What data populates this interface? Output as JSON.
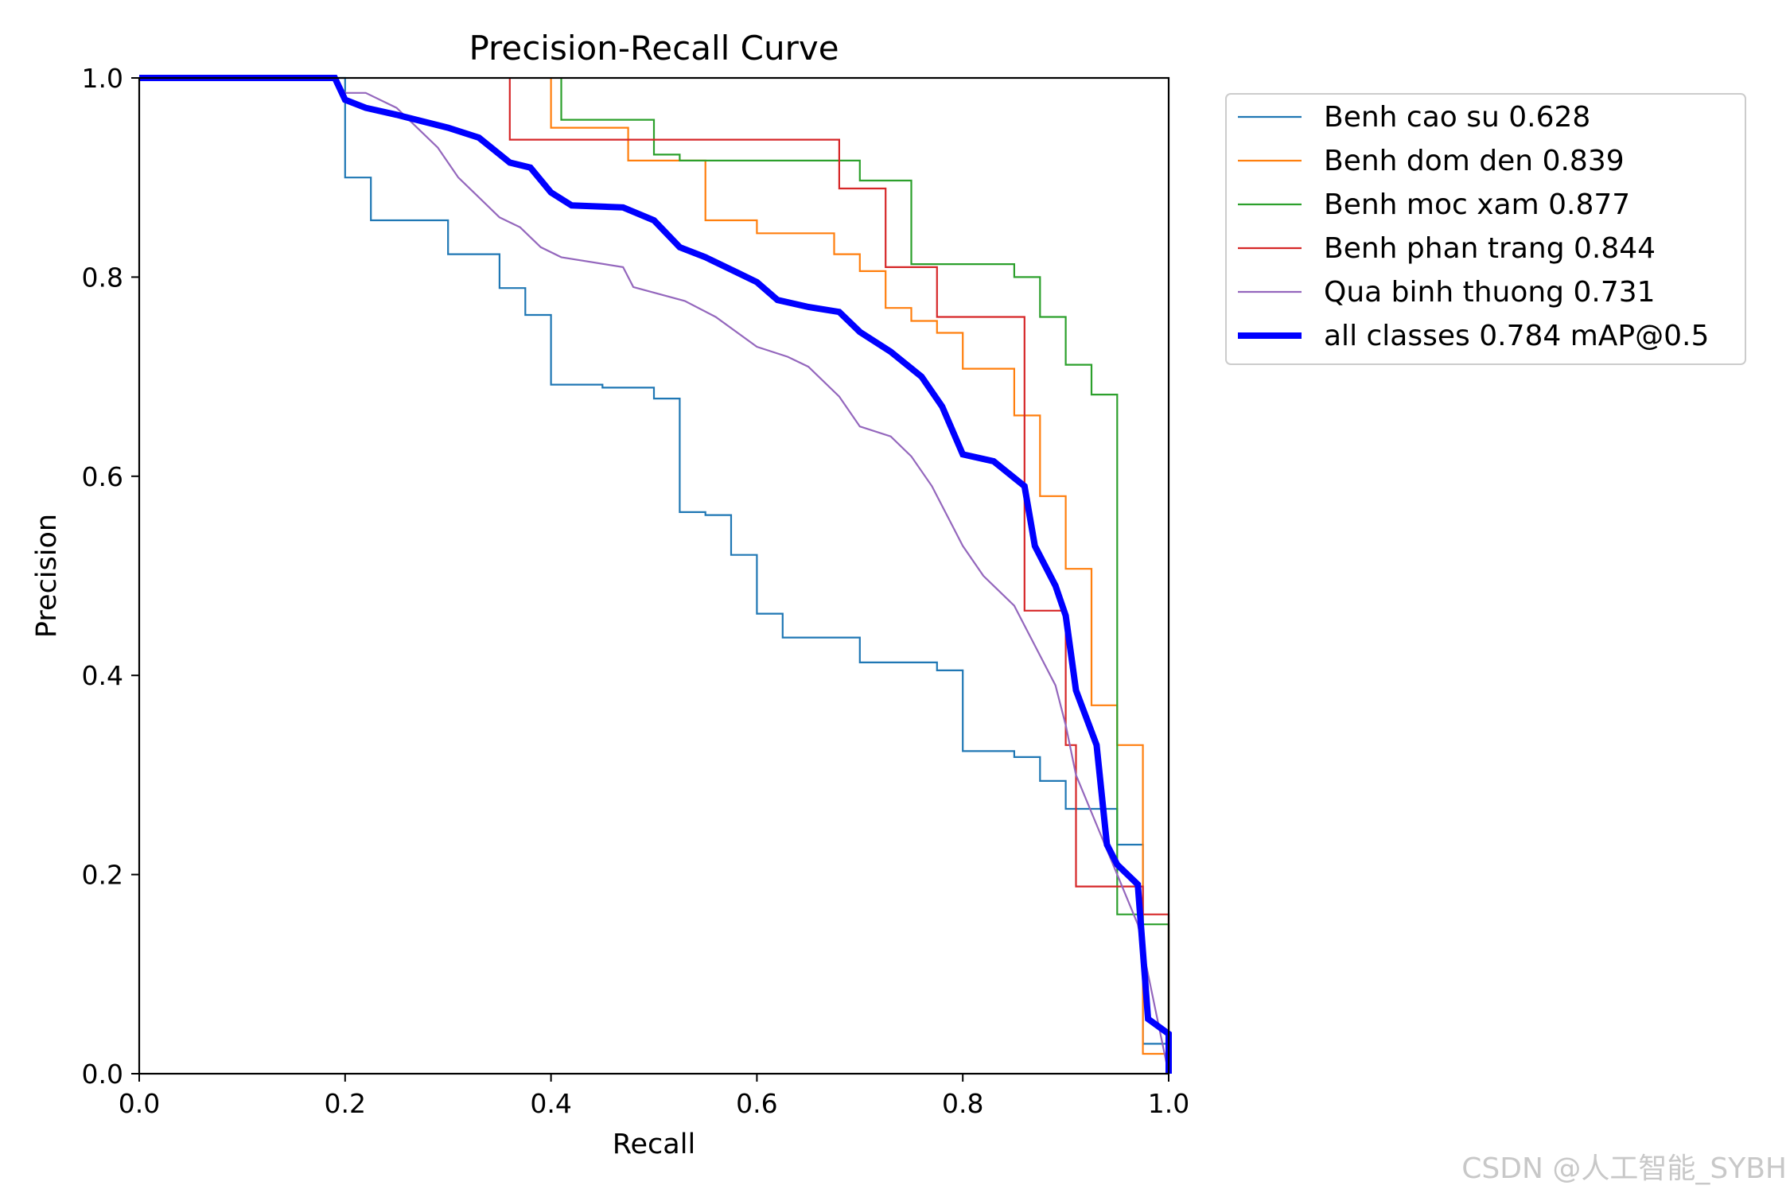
{
  "chart_data": {
    "type": "line",
    "title": "Precision-Recall Curve",
    "xlabel": "Recall",
    "ylabel": "Precision",
    "xlim": [
      0,
      1
    ],
    "ylim": [
      0,
      1
    ],
    "xticks": [
      "0.0",
      "0.2",
      "0.4",
      "0.6",
      "0.8",
      "1.0"
    ],
    "yticks": [
      "0.0",
      "0.2",
      "0.4",
      "0.6",
      "0.8",
      "1.0"
    ],
    "grid": false,
    "legend_position": "outside-top-right",
    "series": [
      {
        "name": "Benh cao su 0.628",
        "color": "#1f77b4",
        "width": "thin",
        "x": [
          0,
          0.19,
          0.2,
          0.2,
          0.225,
          0.225,
          0.3,
          0.3,
          0.35,
          0.35,
          0.375,
          0.375,
          0.4,
          0.4,
          0.45,
          0.45,
          0.5,
          0.5,
          0.525,
          0.525,
          0.55,
          0.55,
          0.575,
          0.575,
          0.6,
          0.6,
          0.625,
          0.625,
          0.7,
          0.7,
          0.775,
          0.775,
          0.8,
          0.8,
          0.85,
          0.85,
          0.875,
          0.875,
          0.9,
          0.9,
          0.95,
          0.95,
          0.975,
          0.975,
          1.0,
          1.0
        ],
        "y": [
          1.0,
          1.0,
          1.0,
          0.9,
          0.9,
          0.857,
          0.857,
          0.823,
          0.823,
          0.789,
          0.789,
          0.762,
          0.762,
          0.692,
          0.692,
          0.689,
          0.689,
          0.678,
          0.678,
          0.564,
          0.564,
          0.561,
          0.561,
          0.521,
          0.521,
          0.462,
          0.462,
          0.438,
          0.438,
          0.413,
          0.413,
          0.405,
          0.405,
          0.324,
          0.324,
          0.318,
          0.318,
          0.294,
          0.294,
          0.266,
          0.266,
          0.23,
          0.23,
          0.03,
          0.03,
          0.0
        ]
      },
      {
        "name": "Benh dom den 0.839",
        "color": "#ff7f0e",
        "width": "thin",
        "x": [
          0.4,
          0.4,
          0.475,
          0.475,
          0.55,
          0.55,
          0.6,
          0.6,
          0.675,
          0.675,
          0.7,
          0.7,
          0.725,
          0.725,
          0.75,
          0.75,
          0.775,
          0.775,
          0.8,
          0.8,
          0.85,
          0.85,
          0.875,
          0.875,
          0.9,
          0.9,
          0.925,
          0.925,
          0.95,
          0.95,
          0.975,
          0.975,
          1.0,
          1.0
        ],
        "y": [
          1.0,
          0.95,
          0.95,
          0.917,
          0.917,
          0.857,
          0.857,
          0.844,
          0.844,
          0.823,
          0.823,
          0.806,
          0.806,
          0.769,
          0.769,
          0.756,
          0.756,
          0.744,
          0.744,
          0.708,
          0.708,
          0.661,
          0.661,
          0.58,
          0.58,
          0.507,
          0.507,
          0.37,
          0.37,
          0.33,
          0.33,
          0.02,
          0.02,
          0.0
        ]
      },
      {
        "name": "Benh moc xam 0.877",
        "color": "#2ca02c",
        "width": "thin",
        "x": [
          0.41,
          0.41,
          0.5,
          0.5,
          0.525,
          0.525,
          0.7,
          0.7,
          0.75,
          0.75,
          0.85,
          0.85,
          0.875,
          0.875,
          0.9,
          0.9,
          0.925,
          0.925,
          0.95,
          0.95,
          0.975,
          0.975,
          1.0,
          1.0
        ],
        "y": [
          1.0,
          0.958,
          0.958,
          0.923,
          0.923,
          0.917,
          0.917,
          0.897,
          0.897,
          0.813,
          0.813,
          0.8,
          0.8,
          0.76,
          0.76,
          0.712,
          0.712,
          0.682,
          0.682,
          0.16,
          0.16,
          0.15,
          0.15,
          0.0
        ]
      },
      {
        "name": "Benh phan trang 0.844",
        "color": "#d62728",
        "width": "thin",
        "x": [
          0.36,
          0.36,
          0.68,
          0.68,
          0.725,
          0.725,
          0.775,
          0.775,
          0.86,
          0.86,
          0.9,
          0.9,
          0.91,
          0.91,
          0.975,
          0.975,
          1.0,
          1.0
        ],
        "y": [
          1.0,
          0.938,
          0.938,
          0.889,
          0.889,
          0.81,
          0.81,
          0.76,
          0.76,
          0.465,
          0.465,
          0.33,
          0.33,
          0.188,
          0.188,
          0.16,
          0.16,
          0.0
        ]
      },
      {
        "name": "Qua binh thuong 0.731",
        "color": "#9467bd",
        "width": "thin",
        "x": [
          0,
          0.19,
          0.2,
          0.22,
          0.25,
          0.26,
          0.29,
          0.31,
          0.33,
          0.35,
          0.37,
          0.39,
          0.41,
          0.47,
          0.48,
          0.53,
          0.56,
          0.6,
          0.63,
          0.65,
          0.68,
          0.7,
          0.73,
          0.75,
          0.77,
          0.79,
          0.8,
          0.82,
          0.85,
          0.87,
          0.89,
          0.9,
          0.91,
          0.93,
          0.95,
          0.97,
          0.98,
          1.0
        ],
        "y": [
          1.0,
          1.0,
          0.985,
          0.985,
          0.97,
          0.96,
          0.93,
          0.9,
          0.88,
          0.86,
          0.85,
          0.83,
          0.82,
          0.81,
          0.79,
          0.776,
          0.76,
          0.73,
          0.72,
          0.71,
          0.68,
          0.65,
          0.64,
          0.62,
          0.59,
          0.55,
          0.53,
          0.5,
          0.47,
          0.43,
          0.39,
          0.35,
          0.3,
          0.25,
          0.2,
          0.15,
          0.1,
          0.0
        ]
      },
      {
        "name": "all classes 0.784 mAP@0.5",
        "color": "#0000ff",
        "width": "thick",
        "x": [
          0,
          0.19,
          0.2,
          0.22,
          0.25,
          0.3,
          0.33,
          0.36,
          0.38,
          0.4,
          0.42,
          0.47,
          0.5,
          0.525,
          0.55,
          0.58,
          0.6,
          0.62,
          0.65,
          0.68,
          0.7,
          0.73,
          0.76,
          0.78,
          0.8,
          0.83,
          0.86,
          0.87,
          0.89,
          0.9,
          0.91,
          0.93,
          0.94,
          0.95,
          0.97,
          0.98,
          1.0,
          1.0
        ],
        "y": [
          1.0,
          1.0,
          0.978,
          0.97,
          0.963,
          0.95,
          0.94,
          0.915,
          0.91,
          0.885,
          0.872,
          0.87,
          0.857,
          0.83,
          0.82,
          0.805,
          0.795,
          0.777,
          0.77,
          0.765,
          0.745,
          0.725,
          0.7,
          0.67,
          0.622,
          0.615,
          0.59,
          0.53,
          0.49,
          0.46,
          0.385,
          0.33,
          0.23,
          0.21,
          0.19,
          0.055,
          0.04,
          0.0
        ]
      }
    ]
  },
  "watermark": "CSDN @人工智能_SYBH"
}
